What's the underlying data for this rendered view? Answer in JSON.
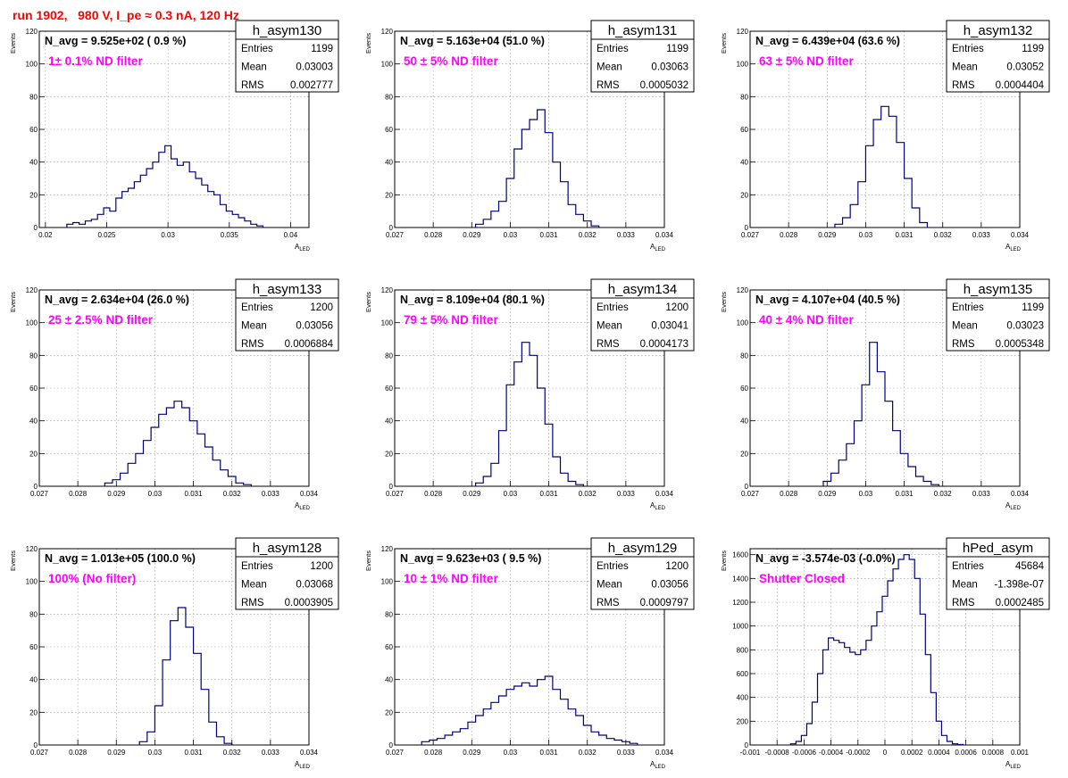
{
  "page_title": "run 1902,   980 V, I_pe ≈ 0.3 nA, 120 Hz",
  "colors": {
    "title": "#ff0000",
    "filter_text": "#ff00ff",
    "histogram": "#000080",
    "grid": "#999999"
  },
  "y_axis_label": "Events",
  "x_axis_label_main": "A",
  "x_axis_label_sub": "LED",
  "chart_data": [
    {
      "type": "histogram",
      "name": "h_asym130",
      "navg_label": "N_avg = 9.525e+02 ( 0.9 %)",
      "filter_label": "1± 0.1% ND filter",
      "stats": {
        "Entries": "1199",
        "Mean": "0.03003",
        "RMS": "0.002777"
      },
      "xlim": [
        0.0195,
        0.0415
      ],
      "ylim": [
        0,
        120
      ],
      "xticks": [
        0.02,
        0.025,
        0.03,
        0.035,
        0.04
      ],
      "xticklabels": [
        "0.02",
        "0.025",
        "0.03",
        "0.035",
        "0.04"
      ],
      "yticks": [
        0,
        20,
        40,
        60,
        80,
        100,
        120
      ],
      "yticklabels": [
        "0",
        "20",
        "40",
        "60",
        "80",
        "100",
        "120"
      ],
      "x": [
        0.022,
        0.0225,
        0.023,
        0.0235,
        0.024,
        0.0245,
        0.025,
        0.0255,
        0.026,
        0.0265,
        0.027,
        0.0275,
        0.028,
        0.0285,
        0.029,
        0.0295,
        0.03,
        0.0305,
        0.031,
        0.0315,
        0.032,
        0.0325,
        0.033,
        0.0335,
        0.034,
        0.0345,
        0.035,
        0.0355,
        0.036,
        0.0365,
        0.037,
        0.0375
      ],
      "values": [
        2,
        3,
        2,
        4,
        5,
        8,
        12,
        10,
        18,
        22,
        24,
        28,
        32,
        36,
        40,
        46,
        50,
        42,
        38,
        40,
        34,
        30,
        26,
        22,
        20,
        14,
        10,
        8,
        6,
        4,
        2,
        1
      ]
    },
    {
      "type": "histogram",
      "name": "h_asym131",
      "navg_label": "N_avg = 5.163e+04 (51.0 %)",
      "filter_label": "50 ± 5% ND filter",
      "stats": {
        "Entries": "1199",
        "Mean": "0.03063",
        "RMS": "0.0005032"
      },
      "xlim": [
        0.027,
        0.034
      ],
      "ylim": [
        0,
        120
      ],
      "xticks": [
        0.027,
        0.028,
        0.029,
        0.03,
        0.031,
        0.032,
        0.033,
        0.034
      ],
      "xticklabels": [
        "0.027",
        "0.028",
        "0.029",
        "0.03",
        "0.031",
        "0.032",
        "0.033",
        "0.034"
      ],
      "yticks": [
        0,
        20,
        40,
        60,
        80,
        100,
        120
      ],
      "yticklabels": [
        "0",
        "20",
        "40",
        "60",
        "80",
        "100",
        "120"
      ],
      "x": [
        0.0292,
        0.0294,
        0.0296,
        0.0298,
        0.03,
        0.0302,
        0.0304,
        0.0306,
        0.0308,
        0.031,
        0.0312,
        0.0314,
        0.0316,
        0.0318,
        0.032,
        0.0322
      ],
      "values": [
        2,
        5,
        10,
        16,
        30,
        48,
        60,
        66,
        72,
        58,
        40,
        28,
        14,
        8,
        4,
        1
      ]
    },
    {
      "type": "histogram",
      "name": "h_asym132",
      "navg_label": "N_avg = 6.439e+04 (63.6 %)",
      "filter_label": "63 ± 5% ND filter",
      "stats": {
        "Entries": "1199",
        "Mean": "0.03052",
        "RMS": "0.0004404"
      },
      "xlim": [
        0.027,
        0.034
      ],
      "ylim": [
        0,
        120
      ],
      "xticks": [
        0.027,
        0.028,
        0.029,
        0.03,
        0.031,
        0.032,
        0.033,
        0.034
      ],
      "xticklabels": [
        "0.027",
        "0.028",
        "0.029",
        "0.03",
        "0.031",
        "0.032",
        "0.033",
        "0.034"
      ],
      "yticks": [
        0,
        20,
        40,
        60,
        80,
        100,
        120
      ],
      "yticklabels": [
        "0",
        "20",
        "40",
        "60",
        "80",
        "100",
        "120"
      ],
      "x": [
        0.0293,
        0.0295,
        0.0297,
        0.0299,
        0.0301,
        0.0303,
        0.0305,
        0.0307,
        0.0309,
        0.0311,
        0.0313,
        0.0315
      ],
      "values": [
        2,
        6,
        14,
        28,
        50,
        66,
        74,
        68,
        52,
        30,
        12,
        3
      ]
    },
    {
      "type": "histogram",
      "name": "h_asym133",
      "navg_label": "N_avg = 2.634e+04 (26.0 %)",
      "filter_label": "25 ± 2.5% ND filter",
      "stats": {
        "Entries": "1200",
        "Mean": "0.03056",
        "RMS": "0.0006884"
      },
      "xlim": [
        0.027,
        0.034
      ],
      "ylim": [
        0,
        120
      ],
      "xticks": [
        0.027,
        0.028,
        0.029,
        0.03,
        0.031,
        0.032,
        0.033,
        0.034
      ],
      "xticklabels": [
        "0.027",
        "0.028",
        "0.029",
        "0.03",
        "0.031",
        "0.032",
        "0.033",
        "0.034"
      ],
      "yticks": [
        0,
        20,
        40,
        60,
        80,
        100,
        120
      ],
      "yticklabels": [
        "0",
        "20",
        "40",
        "60",
        "80",
        "100",
        "120"
      ],
      "x": [
        0.0288,
        0.029,
        0.0292,
        0.0294,
        0.0296,
        0.0298,
        0.03,
        0.0302,
        0.0304,
        0.0306,
        0.0308,
        0.031,
        0.0312,
        0.0314,
        0.0316,
        0.0318,
        0.032,
        0.0322,
        0.0324
      ],
      "values": [
        2,
        4,
        8,
        14,
        20,
        28,
        36,
        44,
        48,
        52,
        48,
        40,
        32,
        24,
        16,
        10,
        6,
        2,
        1
      ]
    },
    {
      "type": "histogram",
      "name": "h_asym134",
      "navg_label": "N_avg = 8.109e+04 (80.1 %)",
      "filter_label": "79 ± 5% ND filter",
      "stats": {
        "Entries": "1200",
        "Mean": "0.03041",
        "RMS": "0.0004173"
      },
      "xlim": [
        0.027,
        0.034
      ],
      "ylim": [
        0,
        120
      ],
      "xticks": [
        0.027,
        0.028,
        0.029,
        0.03,
        0.031,
        0.032,
        0.033,
        0.034
      ],
      "xticklabels": [
        "0.027",
        "0.028",
        "0.029",
        "0.03",
        "0.031",
        "0.032",
        "0.033",
        "0.034"
      ],
      "yticks": [
        0,
        20,
        40,
        60,
        80,
        100,
        120
      ],
      "yticklabels": [
        "0",
        "20",
        "40",
        "60",
        "80",
        "100",
        "120"
      ],
      "x": [
        0.0292,
        0.0294,
        0.0296,
        0.0298,
        0.03,
        0.0302,
        0.0304,
        0.0306,
        0.0308,
        0.031,
        0.0312,
        0.0314,
        0.0316,
        0.0318
      ],
      "values": [
        2,
        6,
        14,
        34,
        62,
        76,
        88,
        80,
        60,
        38,
        18,
        8,
        3,
        1
      ]
    },
    {
      "type": "histogram",
      "name": "h_asym135",
      "navg_label": "N_avg = 4.107e+04 (40.5 %)",
      "filter_label": "40 ± 4% ND filter",
      "stats": {
        "Entries": "1199",
        "Mean": "0.03023",
        "RMS": "0.0005348"
      },
      "xlim": [
        0.027,
        0.034
      ],
      "ylim": [
        0,
        120
      ],
      "xticks": [
        0.027,
        0.028,
        0.029,
        0.03,
        0.031,
        0.032,
        0.033,
        0.034
      ],
      "xticklabels": [
        "0.027",
        "0.028",
        "0.029",
        "0.03",
        "0.031",
        "0.032",
        "0.033",
        "0.034"
      ],
      "yticks": [
        0,
        20,
        40,
        60,
        80,
        100,
        120
      ],
      "yticklabels": [
        "0",
        "20",
        "40",
        "60",
        "80",
        "100",
        "120"
      ],
      "x": [
        0.029,
        0.0292,
        0.0294,
        0.0296,
        0.0298,
        0.03,
        0.0302,
        0.0304,
        0.0306,
        0.0308,
        0.031,
        0.0312,
        0.0314,
        0.0316,
        0.0318
      ],
      "values": [
        3,
        8,
        16,
        26,
        40,
        62,
        88,
        70,
        52,
        34,
        20,
        12,
        6,
        3,
        1
      ]
    },
    {
      "type": "histogram",
      "name": "h_asym128",
      "navg_label": "N_avg = 1.013e+05 (100.0 %)",
      "filter_label": "100% (No filter)",
      "stats": {
        "Entries": "1200",
        "Mean": "0.03068",
        "RMS": "0.0003905"
      },
      "xlim": [
        0.027,
        0.034
      ],
      "ylim": [
        0,
        120
      ],
      "xticks": [
        0.027,
        0.028,
        0.029,
        0.03,
        0.031,
        0.032,
        0.033,
        0.034
      ],
      "xticklabels": [
        "0.027",
        "0.028",
        "0.029",
        "0.03",
        "0.031",
        "0.032",
        "0.033",
        "0.034"
      ],
      "yticks": [
        0,
        20,
        40,
        60,
        80,
        100,
        120
      ],
      "yticklabels": [
        "0",
        "20",
        "40",
        "60",
        "80",
        "100",
        "120"
      ],
      "x": [
        0.0297,
        0.0299,
        0.0301,
        0.0303,
        0.0305,
        0.0307,
        0.0309,
        0.0311,
        0.0313,
        0.0315,
        0.0317,
        0.0319
      ],
      "values": [
        2,
        8,
        24,
        52,
        76,
        84,
        72,
        56,
        34,
        14,
        5,
        1
      ]
    },
    {
      "type": "histogram",
      "name": "h_asym129",
      "navg_label": "N_avg = 9.623e+03 ( 9.5 %)",
      "filter_label": "10 ± 1% ND filter",
      "stats": {
        "Entries": "1200",
        "Mean": "0.03056",
        "RMS": "0.0009797"
      },
      "xlim": [
        0.027,
        0.034
      ],
      "ylim": [
        0,
        120
      ],
      "xticks": [
        0.027,
        0.028,
        0.029,
        0.03,
        0.031,
        0.032,
        0.033,
        0.034
      ],
      "xticklabels": [
        "0.027",
        "0.028",
        "0.029",
        "0.03",
        "0.031",
        "0.032",
        "0.033",
        "0.034"
      ],
      "yticks": [
        0,
        20,
        40,
        60,
        80,
        100,
        120
      ],
      "yticklabels": [
        "0",
        "20",
        "40",
        "60",
        "80",
        "100",
        "120"
      ],
      "x": [
        0.0278,
        0.028,
        0.0282,
        0.0284,
        0.0286,
        0.0288,
        0.029,
        0.0292,
        0.0294,
        0.0296,
        0.0298,
        0.03,
        0.0302,
        0.0304,
        0.0306,
        0.0308,
        0.031,
        0.0312,
        0.0314,
        0.0316,
        0.0318,
        0.032,
        0.0322,
        0.0324,
        0.0326,
        0.0328,
        0.033,
        0.0332
      ],
      "values": [
        2,
        3,
        4,
        6,
        8,
        10,
        14,
        18,
        22,
        26,
        30,
        34,
        36,
        38,
        36,
        40,
        42,
        34,
        28,
        22,
        18,
        12,
        8,
        6,
        4,
        3,
        2,
        1
      ]
    },
    {
      "type": "histogram",
      "name": "hPed_asym",
      "navg_label": "N_avg = -3.574e-03 (-0.0%)",
      "filter_label": "Shutter Closed",
      "stats": {
        "Entries": "45684",
        "Mean": "-1.398e-07",
        "RMS": "0.0002485"
      },
      "xlim": [
        -0.001,
        0.001
      ],
      "ylim": [
        0,
        1650
      ],
      "xticks": [
        -0.001,
        -0.0008,
        -0.0006,
        -0.0004,
        -0.0002,
        0,
        0.0002,
        0.0004,
        0.0006,
        0.0008,
        0.001
      ],
      "xticklabels": [
        "-0.001",
        "-0.0008",
        "-0.0006",
        "-0.0004",
        "-0.0002",
        "0",
        "0.0002",
        "0.0004",
        "0.0006",
        "0.0008",
        "0.001"
      ],
      "yticks": [
        0,
        200,
        400,
        600,
        800,
        1000,
        1200,
        1400,
        1600
      ],
      "yticklabels": [
        "0",
        "200",
        "400",
        "600",
        "800",
        "1000",
        "1200",
        "1400",
        "1600"
      ],
      "x": [
        -0.00068,
        -0.00064,
        -0.0006,
        -0.00056,
        -0.00052,
        -0.00048,
        -0.00044,
        -0.0004,
        -0.00036,
        -0.00032,
        -0.00028,
        -0.00024,
        -0.0002,
        -0.00016,
        -0.00012,
        -8e-05,
        -4e-05,
        0,
        4e-05,
        8e-05,
        0.00012,
        0.00016,
        0.0002,
        0.00024,
        0.00028,
        0.00032,
        0.00036,
        0.0004,
        0.00044,
        0.00048,
        0.00052,
        0.00056
      ],
      "values": [
        10,
        30,
        80,
        180,
        360,
        600,
        800,
        900,
        880,
        860,
        820,
        780,
        760,
        800,
        880,
        1000,
        1120,
        1250,
        1380,
        1480,
        1560,
        1600,
        1560,
        1400,
        1100,
        760,
        440,
        200,
        80,
        30,
        10,
        4
      ]
    }
  ]
}
